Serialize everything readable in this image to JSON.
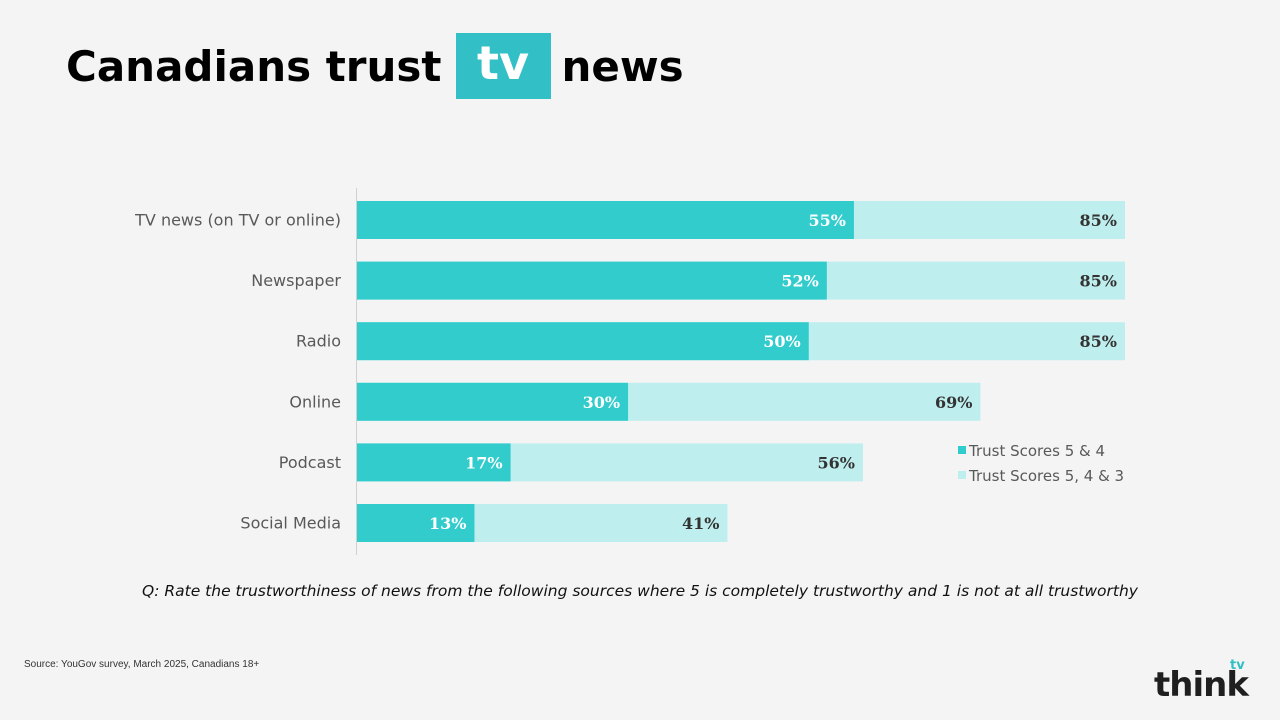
{
  "title": {
    "prefix": "Canadians trust",
    "highlight": "tv",
    "suffix": "news"
  },
  "colors": {
    "primary": "#33cccc",
    "secondary": "#bfeeee",
    "title_box": "#33bfc6"
  },
  "chart_data": {
    "type": "bar",
    "orientation": "horizontal",
    "categories": [
      "TV news (on TV or online)",
      "Newspaper",
      "Radio",
      "Online",
      "Podcast",
      "Social Media"
    ],
    "series": [
      {
        "name": "Trust Scores 5 & 4",
        "values": [
          55,
          52,
          50,
          30,
          17,
          13
        ],
        "color": "#33cccc",
        "label_color": "#ffffff"
      },
      {
        "name": "Trust Scores 5, 4 & 3",
        "values": [
          85,
          85,
          85,
          69,
          56,
          41
        ],
        "color": "#bfeeee",
        "label_color": "#333333"
      }
    ],
    "value_suffix": "%",
    "overlapping_bars": true,
    "xlim": [
      0,
      85
    ],
    "grid": false,
    "legend_position": "bottom-right"
  },
  "question": "Q: Rate the trustworthiness of news from the following sources where 5 is completely trustworthy and 1 is not at all trustworthy",
  "source": "Source: YouGov survey, March 2025, Canadians 18+",
  "logo": {
    "word": "think",
    "sup": "tv"
  }
}
